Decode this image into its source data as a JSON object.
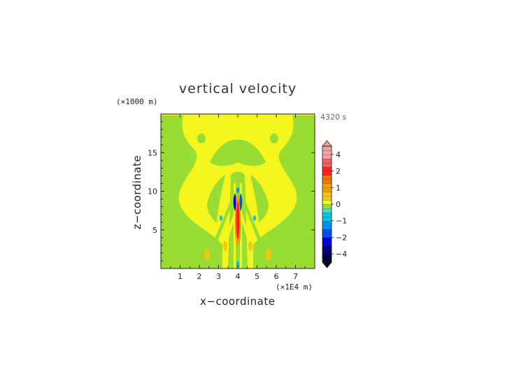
{
  "chart_data": {
    "type": "heatmap",
    "title": "vertical velocity",
    "xlabel": "x−coordinate",
    "ylabel": "z−coordinate",
    "x_unit_label": "(×1E4 m)",
    "y_unit_label": "(×1000 m)",
    "time_label": "4320 s",
    "xlim": [
      0,
      8
    ],
    "ylim": [
      0,
      20
    ],
    "x_ticks": [
      "1",
      "2",
      "3",
      "4",
      "5",
      "6",
      "7"
    ],
    "y_ticks": [
      "5",
      "10",
      "15"
    ],
    "colorbar": {
      "tick_labels": [
        "4",
        "2",
        "1",
        "0",
        "−1",
        "−2",
        "−4"
      ],
      "levels": [
        -5,
        -4.5,
        -4,
        -3.5,
        -3,
        -2.5,
        -2,
        -1.75,
        -1.5,
        -1.25,
        -1,
        -0.75,
        -0.5,
        -0.25,
        0,
        0.25,
        0.5,
        0.75,
        1,
        1.25,
        1.5,
        1.75,
        2,
        2.5,
        3,
        3.5,
        4,
        4.5,
        5
      ],
      "extend": "both"
    },
    "background_value": 0.1,
    "features": [
      {
        "kind": "updraft-core",
        "x": 4.0,
        "z_range": [
          2,
          10
        ],
        "value": 2.5
      },
      {
        "kind": "downdraft-flank",
        "x": 3.9,
        "z_range": [
          7,
          10
        ],
        "value": -2.0
      },
      {
        "kind": "downdraft-flank",
        "x": 4.1,
        "z_range": [
          7,
          10
        ],
        "value": -1.5
      },
      {
        "kind": "weak-updraft",
        "x": 2.4,
        "z": 2.0,
        "value": 0.6
      },
      {
        "kind": "weak-updraft",
        "x": 5.6,
        "z": 2.0,
        "value": 0.6
      },
      {
        "kind": "weak-updraft",
        "x": 2.3,
        "z": 17.0,
        "value": -0.1
      },
      {
        "kind": "weak-updraft",
        "x": 5.7,
        "z": 17.0,
        "value": -0.1
      }
    ]
  }
}
